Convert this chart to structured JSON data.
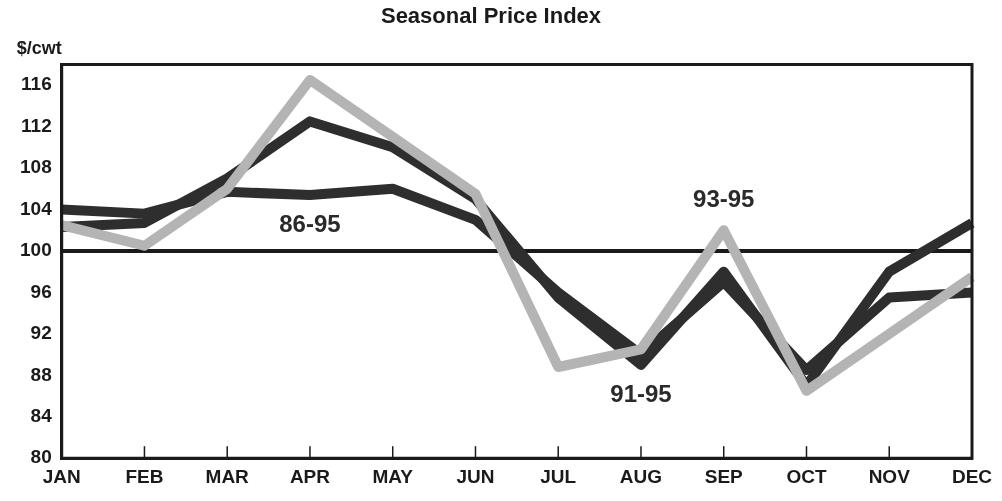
{
  "chart_data": {
    "type": "line",
    "title": "Seasonal Price Index",
    "ylabel": "$/cwt",
    "categories": [
      "JAN",
      "FEB",
      "MAR",
      "APR",
      "MAY",
      "JUN",
      "JUL",
      "AUG",
      "SEP",
      "OCT",
      "NOV",
      "DEC"
    ],
    "series": [
      {
        "color": "#b4b4b4",
        "values": [
          102.5,
          100.5,
          106,
          116.5,
          111,
          105.5,
          88.8,
          90.5,
          102,
          86.5,
          92,
          97.5
        ]
      },
      {
        "color": "#2e2e2e",
        "values": [
          104,
          103.6,
          105.7,
          105.4,
          106,
          103,
          96,
          90,
          97,
          88.5,
          95.5,
          96
        ]
      },
      {
        "color": "#2e2e2e",
        "values": [
          102.3,
          102.7,
          107,
          112.5,
          110,
          105,
          95.5,
          89,
          98,
          87,
          98,
          102.7
        ]
      }
    ],
    "ylim": [
      80,
      118
    ],
    "yticks": [
      80,
      84,
      88,
      92,
      96,
      100,
      104,
      108,
      112,
      116
    ],
    "ref_lines": [
      {
        "axis": "y",
        "value": 100,
        "color": "#1a1a1a"
      }
    ],
    "annotations": [
      {
        "text": "86-95",
        "x": "APR",
        "y": 105.4
      },
      {
        "text": "93-95",
        "x": "SEP",
        "y": 102
      },
      {
        "text": "91-95",
        "x": "AUG",
        "y": 89
      }
    ],
    "grid": false,
    "legend": false,
    "marker": "none",
    "line_style": "solid"
  }
}
